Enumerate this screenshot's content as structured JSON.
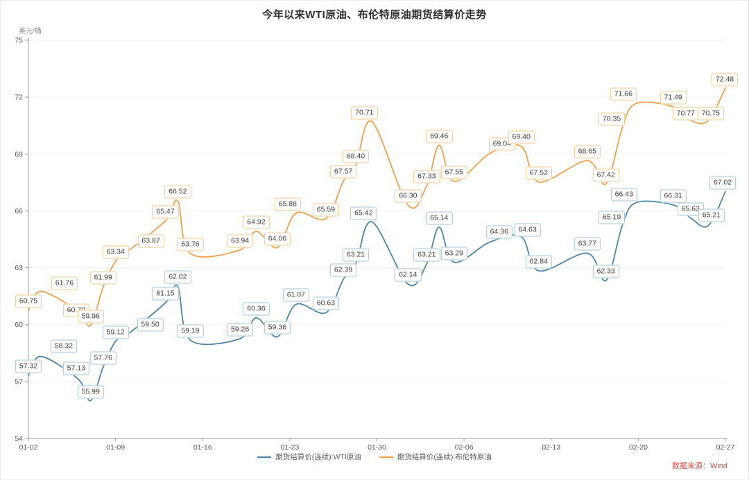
{
  "chart": {
    "title": "今年以来WTI原油、布伦特原油期货结算价走势",
    "unit": "美元/桶",
    "source": "数据来源：Wind",
    "colors": {
      "wti_line": "#4a86a5",
      "wti_label_border": "#a3c5d9",
      "brent_line": "#efa049",
      "brent_label_border": "#f2c890",
      "grid": "#efefef",
      "axis": "#9a9a9a",
      "tick_text": "#555555"
    }
  },
  "chart_data": {
    "type": "line",
    "title": "今年以来WTI原油、布伦特原油期货结算价走势",
    "ylabel": "美元/桶",
    "ylim": [
      54,
      75
    ],
    "y_ticks": [
      "54",
      "57",
      "60",
      "63",
      "66",
      "69",
      "72",
      "75"
    ],
    "x_tick_labels": [
      "01-02",
      "01-09",
      "01-16",
      "01-23",
      "01-30",
      "02-06",
      "02-13",
      "02-20",
      "02-27"
    ],
    "x_tick_days": [
      0,
      7,
      14,
      21,
      28,
      35,
      42,
      49,
      56
    ],
    "x_total_days": 56,
    "grid": "horizontal",
    "legend_position": "bottom-center",
    "point_days": [
      0,
      1,
      4,
      5,
      6,
      7,
      8,
      11,
      12,
      13,
      17,
      18.3,
      20,
      21.5,
      23.9,
      25.3,
      26.3,
      27.6,
      30.5,
      32,
      33,
      34.2,
      37.1,
      39.6,
      41,
      44.9,
      46.4,
      47.7,
      48.8,
      51.8,
      53.2,
      54.6,
      56
    ],
    "series": [
      {
        "name": "期货结算价(连续):WTI原油",
        "color": "#4a86a5",
        "label_border": "#a3c5d9",
        "values": [
          "57.32",
          "58.32",
          "57.13",
          "55.99",
          "57.76",
          "59.12",
          "59.50",
          "61.15",
          "62.02",
          "59.19",
          "59.26",
          "60.36",
          "59.36",
          "61.07",
          "60.63",
          "62.39",
          "63.21",
          "65.42",
          "62.14",
          "63.21",
          "65.14",
          "63.29",
          "64.36",
          "64.63",
          "62.84",
          "63.77",
          "62.33",
          "65.19",
          "66.43",
          "66.31",
          "65.63",
          "65.21",
          "67.02"
        ],
        "label_offsets": {
          "1": [
            33,
            -15
          ],
          "2": [
            -3,
            -15
          ],
          "6": [
            32,
            -13
          ],
          "17": [
            -12,
            -12
          ],
          "22": [
            13,
            -14
          ],
          "23": [
            9,
            -10
          ],
          "27": [
            -15,
            -13
          ],
          "28": [
            -17,
            -12
          ],
          "31": [
            5,
            -15
          ],
          "32": [
            -4,
            -13
          ]
        }
      },
      {
        "name": "期货结算价(连续):布伦特原油",
        "color": "#efa049",
        "label_border": "#f2c890",
        "values": [
          "60.75",
          "61.76",
          "60.70",
          "59.96",
          "61.99",
          "63.34",
          "63.87",
          "65.47",
          "66.52",
          "63.76",
          "63.94",
          "64.92",
          "64.06",
          "65.88",
          "65.59",
          "67.57",
          "68.40",
          "70.71",
          "66.30",
          "67.33",
          "69.46",
          "67.55",
          "69.04",
          "69.40",
          "67.52",
          "68.65",
          "67.42",
          "70.35",
          "71.66",
          "71.49",
          "70.77",
          "70.75",
          "72.48"
        ],
        "label_offsets": {
          "1": [
            34,
            -12
          ],
          "2": [
            -3,
            -2
          ],
          "6": [
            33,
            -15
          ],
          "13": [
            -12,
            -13
          ],
          "17": [
            -11,
            -12
          ],
          "22": [
            17,
            -13
          ],
          "27": [
            -15,
            -13
          ],
          "28": [
            -18,
            -13
          ],
          "30": [
            -7,
            -10
          ],
          "31": [
            4,
            -10
          ],
          "32": [
            -1,
            -12
          ]
        }
      }
    ]
  }
}
